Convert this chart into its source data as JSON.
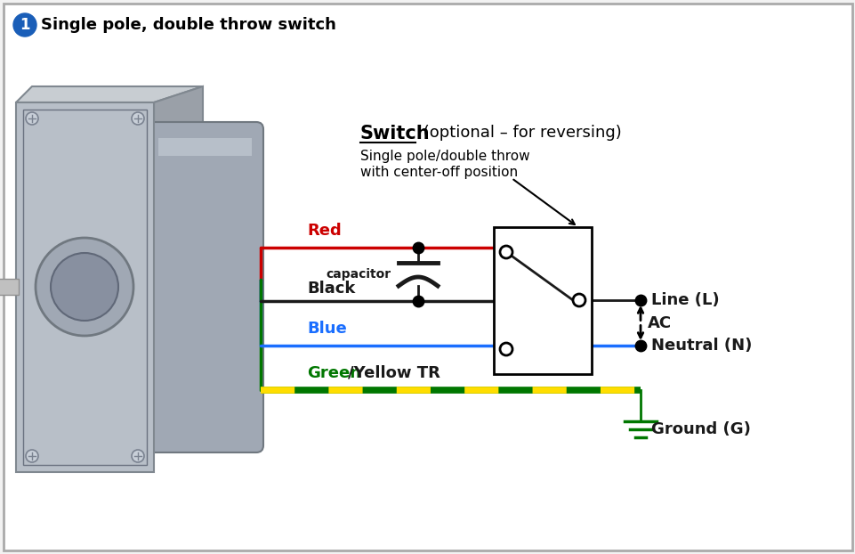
{
  "title": "Single pole, double throw switch",
  "bg_color": "#f2f2f2",
  "border_color": "#999999",
  "switch_label_bold": "Switch",
  "switch_label_normal": " (optional – for reversing)",
  "switch_sub1": "Single pole/double throw",
  "switch_sub2": "with center-off position",
  "wire_colors": {
    "red": "#cc0000",
    "black": "#1a1a1a",
    "blue": "#1a6eff",
    "green": "#007700",
    "yellow": "#ffdd00"
  },
  "labels": {
    "red": "Red",
    "black": "Black",
    "blue": "Blue",
    "green_part": "Green",
    "yellow_part": "/Yellow TR",
    "capacitor": "capacitor",
    "line": "Line (L)",
    "neutral": "Neutral (N)",
    "ground": "Ground (G)",
    "ac": "AC"
  },
  "circle_number_color": "#1a5eb8",
  "circle_number_text": "1"
}
